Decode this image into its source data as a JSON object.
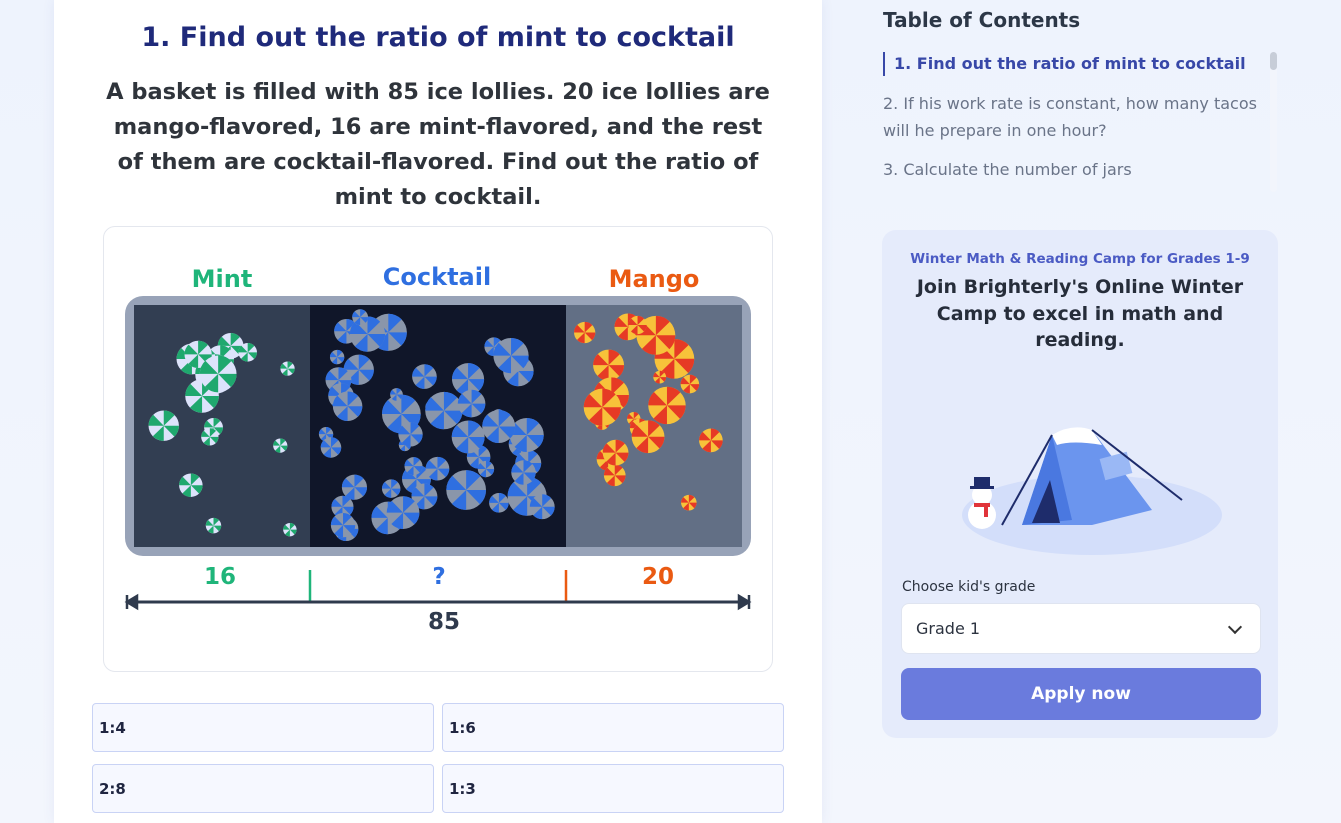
{
  "question": {
    "title": "1. Find out the ratio of mint to cocktail",
    "text": "A basket is filled with 85 ice lollies. 20 ice lollies are mango-flavored, 16 are mint-flavored, and the rest of them are cocktail-flavored. Find out the ratio of mint to cocktail.",
    "figure": {
      "labels": {
        "mint": "Mint",
        "cocktail": "Cocktail",
        "mango": "Mango"
      },
      "counts": {
        "mint": "16",
        "cocktail": "?",
        "mango": "20",
        "total": "85"
      },
      "colors": {
        "mint": "#1fb57a",
        "cocktail": "#2f6fe0",
        "mango": "#ea5a12",
        "axis": "#2f3a4d"
      }
    },
    "options": [
      "1:4",
      "1:6",
      "2:8",
      "1:3"
    ]
  },
  "toc": {
    "title": "Table of Contents",
    "items": [
      "1. Find out the ratio of mint to cocktail",
      "2. If his work rate is constant, how many tacos will he prepare in one hour?",
      "3. Calculate the number of jars"
    ]
  },
  "promo": {
    "subtitle": "Winter Math & Reading Camp for Grades 1-9",
    "headline": "Join Brighterly's Online Winter Camp to excel in math and reading.",
    "grade_label": "Choose kid's grade",
    "grade_value": "Grade 1",
    "apply_label": "Apply now",
    "accent": "#6a7bdd"
  }
}
